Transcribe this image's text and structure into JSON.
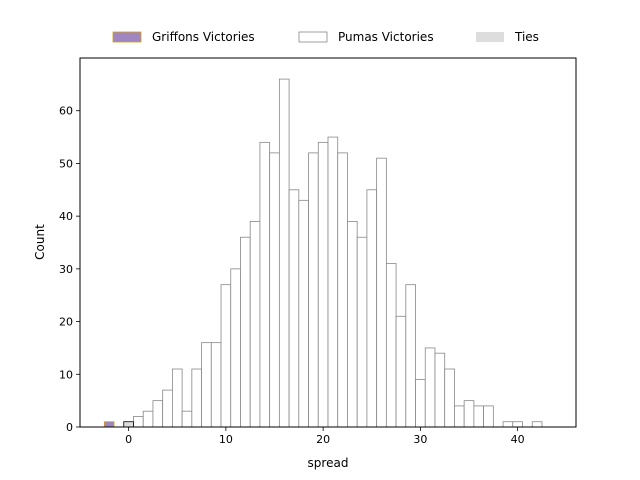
{
  "chart_data": {
    "type": "bar",
    "title": "",
    "xlabel": "spread",
    "ylabel": "Count",
    "xlim": [
      -5,
      46
    ],
    "ylim": [
      0,
      70
    ],
    "xticks": [
      0,
      10,
      20,
      30,
      40
    ],
    "yticks": [
      0,
      10,
      20,
      30,
      40,
      50,
      60
    ],
    "bin_width": 1,
    "grid": false,
    "legend_position": "top-center, outside plot",
    "series": [
      {
        "name": "Griffons Victories",
        "color": "#9f86c0",
        "edge_color": "#d4a017",
        "bins": [
          {
            "x": -2,
            "count": 1
          }
        ]
      },
      {
        "name": "Pumas Victories",
        "color": "#ffffff",
        "edge_color": "#888888",
        "bins": [
          {
            "x": 1,
            "count": 2
          },
          {
            "x": 2,
            "count": 3
          },
          {
            "x": 3,
            "count": 5
          },
          {
            "x": 4,
            "count": 7
          },
          {
            "x": 5,
            "count": 11
          },
          {
            "x": 6,
            "count": 3
          },
          {
            "x": 7,
            "count": 11
          },
          {
            "x": 8,
            "count": 16
          },
          {
            "x": 9,
            "count": 16
          },
          {
            "x": 10,
            "count": 27
          },
          {
            "x": 11,
            "count": 30
          },
          {
            "x": 12,
            "count": 36
          },
          {
            "x": 13,
            "count": 39
          },
          {
            "x": 14,
            "count": 54
          },
          {
            "x": 15,
            "count": 52
          },
          {
            "x": 16,
            "count": 66
          },
          {
            "x": 17,
            "count": 45
          },
          {
            "x": 18,
            "count": 43
          },
          {
            "x": 19,
            "count": 52
          },
          {
            "x": 20,
            "count": 54
          },
          {
            "x": 21,
            "count": 55
          },
          {
            "x": 22,
            "count": 52
          },
          {
            "x": 23,
            "count": 39
          },
          {
            "x": 24,
            "count": 36
          },
          {
            "x": 25,
            "count": 45
          },
          {
            "x": 26,
            "count": 51
          },
          {
            "x": 27,
            "count": 31
          },
          {
            "x": 28,
            "count": 21
          },
          {
            "x": 29,
            "count": 27
          },
          {
            "x": 30,
            "count": 9
          },
          {
            "x": 31,
            "count": 15
          },
          {
            "x": 32,
            "count": 14
          },
          {
            "x": 33,
            "count": 11
          },
          {
            "x": 34,
            "count": 4
          },
          {
            "x": 35,
            "count": 5
          },
          {
            "x": 36,
            "count": 4
          },
          {
            "x": 37,
            "count": 4
          },
          {
            "x": 39,
            "count": 1
          },
          {
            "x": 40,
            "count": 1
          },
          {
            "x": 42,
            "count": 1
          }
        ]
      },
      {
        "name": "Ties",
        "color": "#dddddd",
        "edge_color": "#000000",
        "bins": [
          {
            "x": 0,
            "count": 1
          }
        ]
      }
    ]
  }
}
